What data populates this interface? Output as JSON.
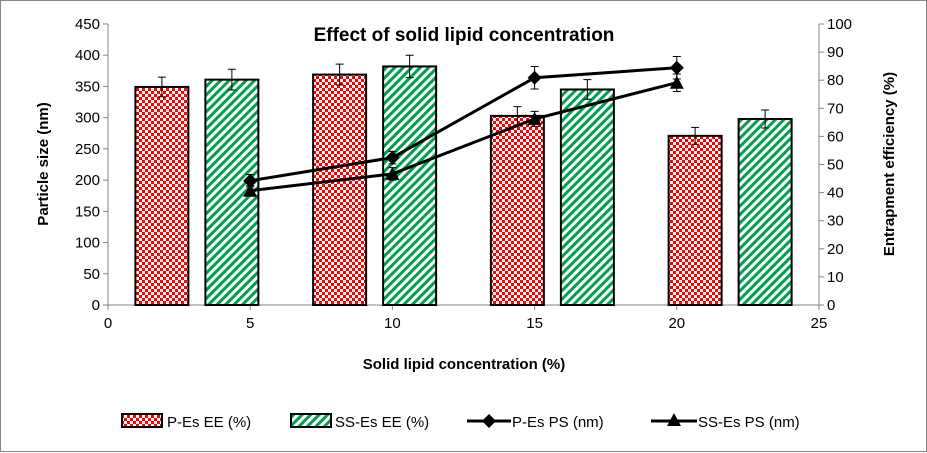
{
  "chart_data": {
    "type": "bar+line",
    "title": "Effect of solid lipid concentration",
    "xlabel": "Solid lipid concentration (%)",
    "ylabel": "Particle size (nm)",
    "y2label": "Entrapment efficiency (%)",
    "xlim": [
      0,
      25
    ],
    "ylim": [
      0,
      450
    ],
    "y2lim": [
      0,
      100
    ],
    "x_ticks": [
      "0",
      "5",
      "10",
      "15",
      "20",
      "25"
    ],
    "y_ticks": [
      "0",
      "50",
      "100",
      "150",
      "200",
      "250",
      "300",
      "350",
      "400",
      "450"
    ],
    "y2_ticks": [
      "0",
      "10",
      "20",
      "30",
      "40",
      "50",
      "60",
      "70",
      "80",
      "90",
      "100"
    ],
    "categories": [
      "5",
      "10",
      "15",
      "20"
    ],
    "bar_series": [
      {
        "name": "P-Es EE (%)",
        "axis": "right",
        "values": [
          77.6,
          82.0,
          67.3,
          60.2
        ],
        "errors": [
          3.5,
          3.7,
          3.3,
          3.0
        ]
      },
      {
        "name": "SS-Es EE (%)",
        "axis": "right",
        "values": [
          80.2,
          84.9,
          76.7,
          66.2
        ],
        "errors": [
          3.7,
          4.0,
          3.5,
          3.2
        ]
      }
    ],
    "line_series": [
      {
        "name": "P-Es PS  (nm)",
        "axis": "left",
        "marker": "diamond",
        "x": [
          5,
          10,
          15,
          20
        ],
        "values": [
          199,
          236,
          364,
          380
        ],
        "errors": [
          10,
          10,
          18,
          18
        ]
      },
      {
        "name": "SS-Es PS  (nm)",
        "axis": "left",
        "marker": "triangle",
        "x": [
          5,
          10,
          15,
          20
        ],
        "values": [
          183,
          210,
          298,
          356
        ],
        "errors": [
          8,
          10,
          12,
          14
        ]
      }
    ],
    "legend_position": "bottom",
    "colors": {
      "pes": "#ff0000",
      "sses": "#00a050",
      "line": "#000000"
    }
  }
}
